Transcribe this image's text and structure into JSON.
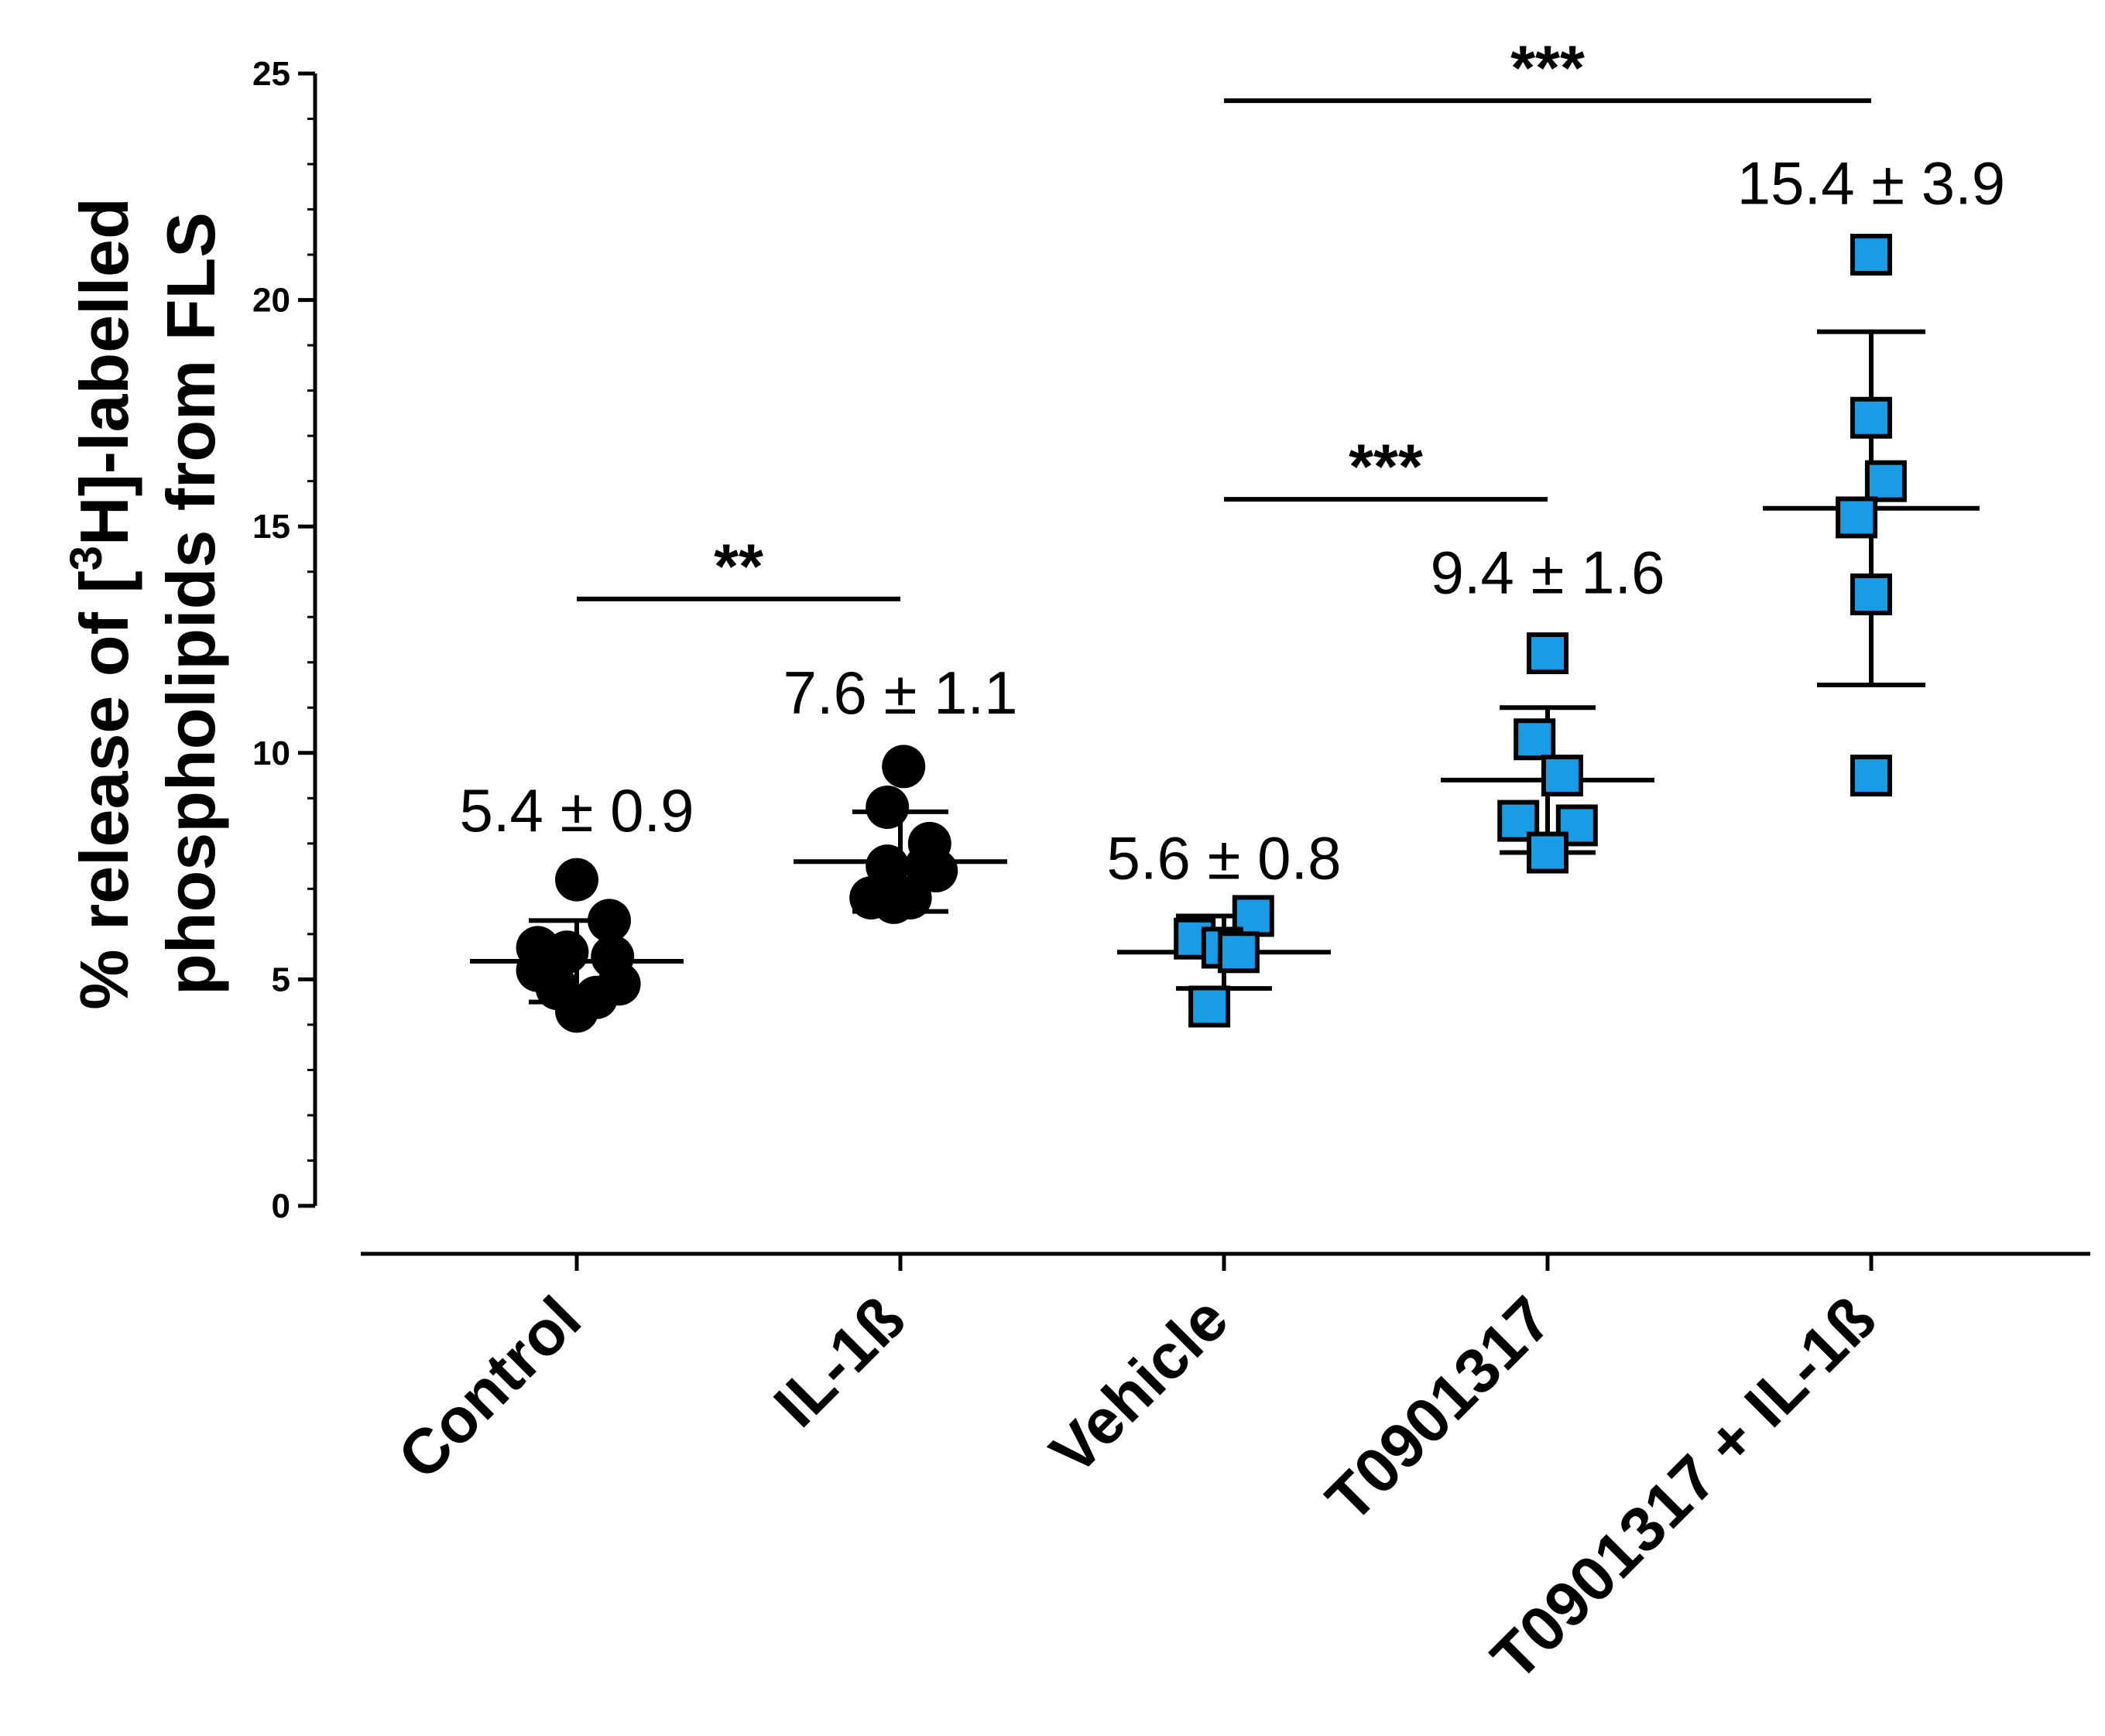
{
  "chart_data": {
    "type": "scatter",
    "title": "",
    "xlabel": "",
    "ylabel_line1": "% release of [3H]-labelled",
    "ylabel_line2": "phospholipids from FLS",
    "ylabel_parts": {
      "prefix": "% release of [",
      "superscript": "3",
      "suffix": "H]-labelled"
    },
    "ylim": [
      0,
      25
    ],
    "yticks": [
      0,
      5,
      10,
      15,
      20,
      25
    ],
    "ytick_labels": [
      "0",
      "5",
      "10",
      "15",
      "20",
      "25"
    ],
    "categories": [
      "Control",
      "IL-1ß",
      "Vehicle",
      "T0901317",
      "T0901317 + IL-1ß"
    ],
    "groups": [
      {
        "name": "Control",
        "marker": "circle",
        "color": "#000000",
        "mean": 5.4,
        "sd": 0.9,
        "label": "5.4 ± 0.9",
        "points": [
          {
            "dx": 0.0,
            "y": 7.2
          },
          {
            "dx": 0.2,
            "y": 6.3
          },
          {
            "dx": -0.24,
            "y": 5.7
          },
          {
            "dx": -0.06,
            "y": 5.6
          },
          {
            "dx": 0.22,
            "y": 5.5
          },
          {
            "dx": -0.24,
            "y": 5.2
          },
          {
            "dx": 0.26,
            "y": 4.9
          },
          {
            "dx": -0.12,
            "y": 4.8
          },
          {
            "dx": 0.12,
            "y": 4.6
          },
          {
            "dx": 0.0,
            "y": 4.3
          }
        ]
      },
      {
        "name": "IL-1ß",
        "marker": "circle",
        "color": "#000000",
        "mean": 7.6,
        "sd": 1.1,
        "label": "7.6 ± 1.1",
        "points": [
          {
            "dx": 0.02,
            "y": 9.7
          },
          {
            "dx": -0.08,
            "y": 8.8
          },
          {
            "dx": 0.18,
            "y": 8.0
          },
          {
            "dx": -0.08,
            "y": 7.5
          },
          {
            "dx": 0.16,
            "y": 7.5
          },
          {
            "dx": 0.22,
            "y": 7.4
          },
          {
            "dx": -0.18,
            "y": 6.8
          },
          {
            "dx": -0.04,
            "y": 6.7
          },
          {
            "dx": 0.06,
            "y": 6.8
          }
        ]
      },
      {
        "name": "Vehicle",
        "marker": "square",
        "color": "#1a9be6",
        "mean": 5.6,
        "sd": 0.8,
        "label": "5.6 ± 0.8",
        "points": [
          {
            "dx": 0.18,
            "y": 6.4
          },
          {
            "dx": -0.18,
            "y": 5.9
          },
          {
            "dx": -0.01,
            "y": 5.7
          },
          {
            "dx": 0.09,
            "y": 5.6
          },
          {
            "dx": -0.09,
            "y": 4.4
          }
        ]
      },
      {
        "name": "T0901317",
        "marker": "square",
        "color": "#1a9be6",
        "mean": 9.4,
        "sd": 1.6,
        "label": "9.4 ± 1.6",
        "points": [
          {
            "dx": 0.0,
            "y": 12.2
          },
          {
            "dx": -0.08,
            "y": 10.3
          },
          {
            "dx": 0.09,
            "y": 9.5
          },
          {
            "dx": -0.18,
            "y": 8.5
          },
          {
            "dx": 0.18,
            "y": 8.4
          },
          {
            "dx": 0.0,
            "y": 7.8
          }
        ]
      },
      {
        "name": "T0901317 + IL-1ß",
        "marker": "square",
        "color": "#1a9be6",
        "mean": 15.4,
        "sd": 3.9,
        "label": "15.4 ± 3.9",
        "points": [
          {
            "dx": 0.0,
            "y": 21.0
          },
          {
            "dx": 0.0,
            "y": 17.4
          },
          {
            "dx": 0.09,
            "y": 16.0
          },
          {
            "dx": -0.09,
            "y": 15.2
          },
          {
            "dx": 0.0,
            "y": 13.5
          },
          {
            "dx": 0.0,
            "y": 9.5
          }
        ]
      }
    ],
    "significance": [
      {
        "from": 0,
        "to": 1,
        "y": 13.4,
        "label": "**"
      },
      {
        "from": 2,
        "to": 3,
        "y": 15.6,
        "label": "***"
      },
      {
        "from": 2,
        "to": 4,
        "y": 24.4,
        "label": "***"
      }
    ]
  }
}
